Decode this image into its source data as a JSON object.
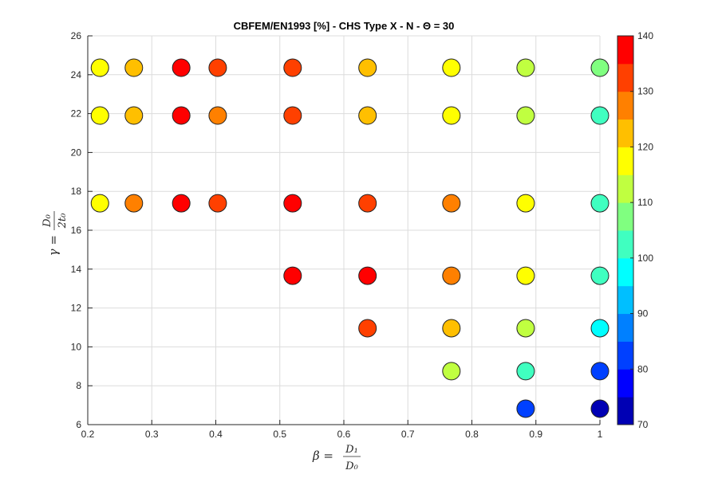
{
  "chart_data": {
    "type": "scatter",
    "title": "CBFEM/EN1993 [%] - CHS Type X - N - Θ = 30",
    "xlabel": {
      "lhs": "β =",
      "num": "D₁",
      "den": "D₀"
    },
    "ylabel": {
      "lhs": "γ =",
      "num": "D₀",
      "den": "2t₀"
    },
    "xlim": [
      0.2,
      1.0
    ],
    "ylim": [
      6,
      26
    ],
    "xticks": [
      "0.2",
      "0.3",
      "0.4",
      "0.5",
      "0.6",
      "0.7",
      "0.8",
      "0.9",
      "1"
    ],
    "yticks": [
      "6",
      "8",
      "10",
      "12",
      "14",
      "16",
      "18",
      "20",
      "22",
      "24",
      "26"
    ],
    "grid": true,
    "colorbar": {
      "range": [
        70,
        140
      ],
      "step": 5,
      "ticks": [
        "70",
        "80",
        "90",
        "100",
        "110",
        "120",
        "130",
        "140"
      ],
      "placement": "right",
      "colors": [
        "#0000B4",
        "#0000FF",
        "#0040FF",
        "#0080FF",
        "#00BFFF",
        "#00FFFF",
        "#40FFC0",
        "#80FF80",
        "#C0FF40",
        "#FFFF00",
        "#FFBF00",
        "#FF8000",
        "#FF4000",
        "#FF0000"
      ]
    },
    "points": [
      {
        "x": 0.219,
        "y": 24.36,
        "c": 117.5
      },
      {
        "x": 0.272,
        "y": 24.36,
        "c": 122.5
      },
      {
        "x": 0.346,
        "y": 24.36,
        "c": 137.5
      },
      {
        "x": 0.403,
        "y": 24.36,
        "c": 132.5
      },
      {
        "x": 0.52,
        "y": 24.36,
        "c": 132.5
      },
      {
        "x": 0.637,
        "y": 24.36,
        "c": 122.5
      },
      {
        "x": 0.768,
        "y": 24.36,
        "c": 117.5
      },
      {
        "x": 0.884,
        "y": 24.36,
        "c": 112.5
      },
      {
        "x": 1.0,
        "y": 24.36,
        "c": 107.5
      },
      {
        "x": 0.219,
        "y": 21.9,
        "c": 117.5
      },
      {
        "x": 0.272,
        "y": 21.9,
        "c": 122.5
      },
      {
        "x": 0.346,
        "y": 21.9,
        "c": 137.5
      },
      {
        "x": 0.403,
        "y": 21.9,
        "c": 127.5
      },
      {
        "x": 0.52,
        "y": 21.9,
        "c": 132.5
      },
      {
        "x": 0.637,
        "y": 21.9,
        "c": 122.5
      },
      {
        "x": 0.768,
        "y": 21.9,
        "c": 117.5
      },
      {
        "x": 0.884,
        "y": 21.9,
        "c": 112.5
      },
      {
        "x": 1.0,
        "y": 21.9,
        "c": 102.5
      },
      {
        "x": 0.219,
        "y": 17.39,
        "c": 117.5
      },
      {
        "x": 0.272,
        "y": 17.39,
        "c": 127.5
      },
      {
        "x": 0.346,
        "y": 17.39,
        "c": 137.5
      },
      {
        "x": 0.403,
        "y": 17.39,
        "c": 132.5
      },
      {
        "x": 0.52,
        "y": 17.39,
        "c": 137.5
      },
      {
        "x": 0.637,
        "y": 17.39,
        "c": 132.5
      },
      {
        "x": 0.768,
        "y": 17.39,
        "c": 127.5
      },
      {
        "x": 0.884,
        "y": 17.39,
        "c": 117.5
      },
      {
        "x": 1.0,
        "y": 17.39,
        "c": 102.5
      },
      {
        "x": 0.52,
        "y": 13.66,
        "c": 137.5
      },
      {
        "x": 0.637,
        "y": 13.66,
        "c": 137.5
      },
      {
        "x": 0.768,
        "y": 13.66,
        "c": 127.5
      },
      {
        "x": 0.884,
        "y": 13.66,
        "c": 117.5
      },
      {
        "x": 1.0,
        "y": 13.66,
        "c": 102.5
      },
      {
        "x": 0.637,
        "y": 10.96,
        "c": 132.5
      },
      {
        "x": 0.768,
        "y": 10.96,
        "c": 122.5
      },
      {
        "x": 0.884,
        "y": 10.96,
        "c": 112.5
      },
      {
        "x": 1.0,
        "y": 10.96,
        "c": 97.5
      },
      {
        "x": 0.768,
        "y": 8.75,
        "c": 112.5
      },
      {
        "x": 0.884,
        "y": 8.75,
        "c": 102.5
      },
      {
        "x": 1.0,
        "y": 8.75,
        "c": 82.5
      },
      {
        "x": 0.884,
        "y": 6.82,
        "c": 82.5
      },
      {
        "x": 1.0,
        "y": 6.82,
        "c": 72.5
      }
    ]
  }
}
